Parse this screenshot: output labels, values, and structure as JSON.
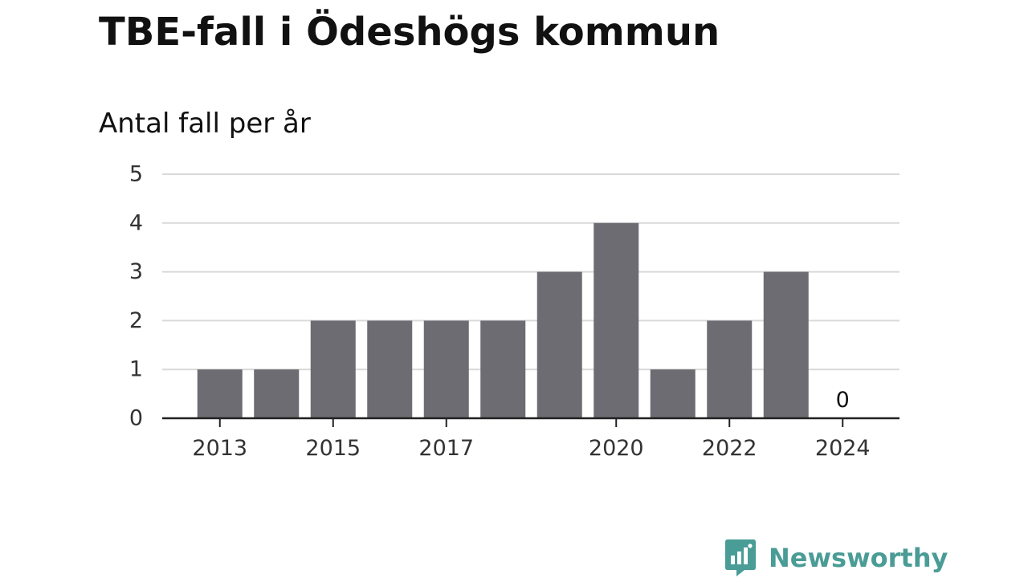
{
  "brand": {
    "name": "Newsworthy",
    "color": "#4a9c96",
    "icon": "bar-chart-speech-bubble-icon"
  },
  "chart_data": {
    "type": "bar",
    "title": "TBE-fall i Ödeshögs kommun",
    "subtitle": "Antal fall per år",
    "xlabel": "",
    "ylabel": "",
    "categories": [
      "2013",
      "2014",
      "2015",
      "2016",
      "2017",
      "2018",
      "2019",
      "2020",
      "2021",
      "2022",
      "2023",
      "2024"
    ],
    "values": [
      1,
      1,
      2,
      2,
      2,
      2,
      3,
      4,
      1,
      2,
      3,
      0
    ],
    "x_tick_labels": [
      "2013",
      "2015",
      "2017",
      "2020",
      "2022",
      "2024"
    ],
    "y_ticks": [
      0,
      1,
      2,
      3,
      4,
      5
    ],
    "ylim": [
      0,
      5
    ],
    "grid": true,
    "legend": "none",
    "data_labels": [
      {
        "category": "2024",
        "text": "0"
      }
    ],
    "colors": {
      "bar": "#6d6c72",
      "grid": "#d9d9d9",
      "axis": "#222222",
      "text": "#111111"
    }
  }
}
